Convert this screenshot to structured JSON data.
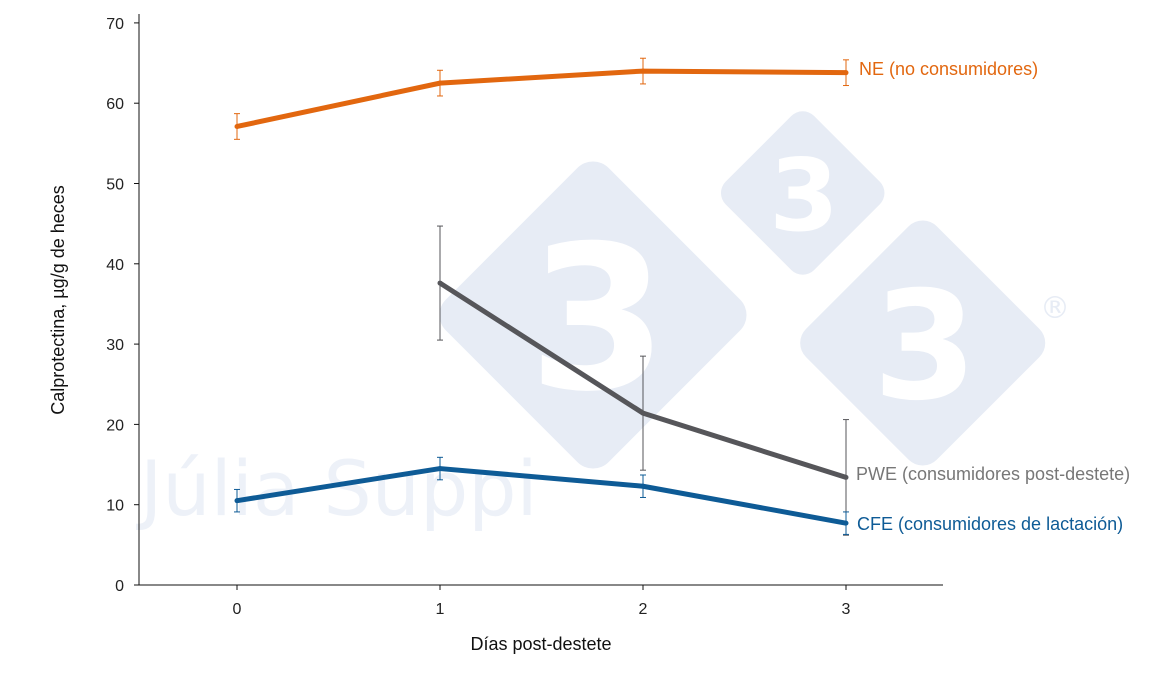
{
  "chart_data": {
    "type": "line",
    "xlabel": "Días post-destete",
    "ylabel": "Calprotectina, µg/g de heces",
    "x": [
      0,
      1,
      2,
      3
    ],
    "xlim": [
      -0.5,
      3.5
    ],
    "ylim": [
      0,
      70
    ],
    "yticks": [
      0,
      10,
      20,
      30,
      40,
      50,
      60,
      70
    ],
    "grid": false,
    "legend": "inline-right",
    "series": [
      {
        "name": "NE (no consumidores)",
        "color": "#e2670f",
        "x": [
          0,
          1,
          2,
          3
        ],
        "values": [
          57.1,
          62.5,
          64.0,
          63.8
        ],
        "err": [
          1.6,
          1.6,
          1.6,
          1.6
        ]
      },
      {
        "name": "PWE (consumidores post-destete)",
        "label_color": "#777777",
        "color": "#56565a",
        "x": [
          1,
          2,
          3
        ],
        "values": [
          37.6,
          21.4,
          13.4
        ],
        "err": [
          7.1,
          7.1,
          7.2
        ]
      },
      {
        "name": "CFE (consumidores de lactación)",
        "color": "#0e5b96",
        "x": [
          0,
          1,
          2,
          3
        ],
        "values": [
          10.5,
          14.5,
          12.3,
          7.7
        ],
        "err": [
          1.4,
          1.4,
          1.4,
          1.4
        ]
      }
    ]
  },
  "watermark": {
    "author": "Júlia Suppi",
    "digits": [
      "3",
      "3",
      "3"
    ],
    "registered": "®",
    "color": "#e7ecf5"
  }
}
